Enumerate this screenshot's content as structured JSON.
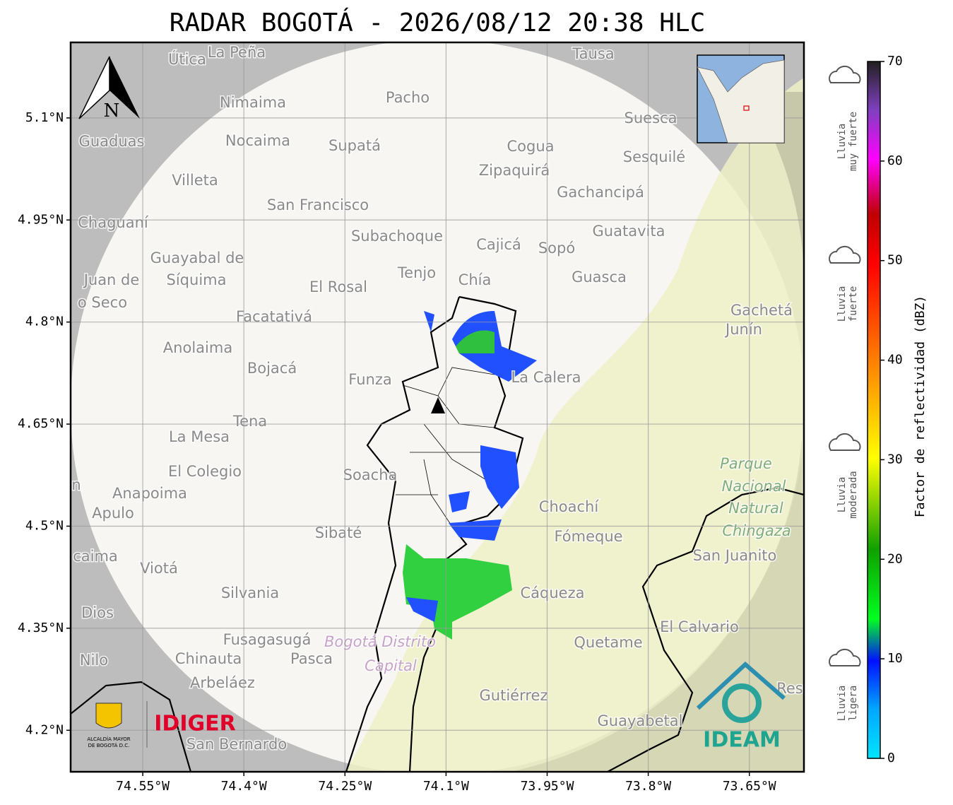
{
  "title": "RADAR BOGOTÁ - 2026/08/12 20:38 HLC",
  "north_label": "N",
  "map": {
    "xlim": [
      -74.657,
      -73.569
    ],
    "ylim": [
      4.139,
      5.211
    ],
    "xticks": [
      {
        "value": -74.55,
        "label": "74.55°W"
      },
      {
        "value": -74.4,
        "label": "74.4°W"
      },
      {
        "value": -74.25,
        "label": "74.25°W"
      },
      {
        "value": -74.1,
        "label": "74.1°W"
      },
      {
        "value": -73.95,
        "label": "73.95°W"
      },
      {
        "value": -73.8,
        "label": "73.8°W"
      },
      {
        "value": -73.65,
        "label": "73.65°W"
      }
    ],
    "yticks": [
      {
        "value": 5.1,
        "label": "5.1°N"
      },
      {
        "value": 4.95,
        "label": "4.95°N"
      },
      {
        "value": 4.8,
        "label": "4.8°N"
      },
      {
        "value": 4.65,
        "label": "4.65°N"
      },
      {
        "value": 4.5,
        "label": "4.5°N"
      },
      {
        "value": 4.35,
        "label": "4.35°N"
      },
      {
        "value": 4.2,
        "label": "4.2°N"
      }
    ],
    "grid": true
  },
  "places": [
    "Útica",
    "La Peña",
    "Tausa",
    "Pacho",
    "Nimaima",
    "Guaduas",
    "Nocaima",
    "Supatá",
    "Cogua",
    "Suesca",
    "Sesquilé",
    "Zipaquirá",
    "Villeta",
    "Gachancipá",
    "San Francisco",
    "Chaguaní",
    "Guatavita",
    "Subachoque",
    "Cajicá",
    "Sopó",
    "Guayabal de",
    "Síquima",
    "Tenjo",
    "Chía",
    "Guasca",
    "Juan de",
    "o Seco",
    "El Rosal",
    "Facatativá",
    "Gachetá",
    "Junín",
    "Anolaima",
    "Bojacá",
    "Funza",
    "La Calera",
    "Tena",
    "La Mesa",
    "El Colegio",
    "Soacha",
    "Anapoima",
    "n",
    "Apulo",
    "Choachí",
    "Sibaté",
    "Fómeque",
    "San Juanito",
    "caima",
    "Viotá",
    "Cáqueza",
    "Silvania",
    "Dios",
    "El Calvario",
    "Fusagasugá",
    "Quetame",
    "Nilo",
    "Chinauta",
    "Pasca",
    "Arbeláez",
    "Gutiérrez",
    "Res",
    "Guayabetal",
    "San Bernardo",
    "Parque",
    "Nacional",
    "Natural",
    "Chingaza",
    "Bogotá Distrito",
    "Capital"
  ],
  "colorbar": {
    "label": "Factor de reflectividad (dBZ)",
    "lim": [
      0,
      70
    ],
    "ticks": [
      0,
      10,
      20,
      30,
      40,
      50,
      60,
      70
    ]
  },
  "rain_categories": [
    [
      "Lluvia",
      "muy fuerte"
    ],
    [
      "Lluvia",
      "fuerte"
    ],
    [
      "Lluvia",
      "moderada"
    ],
    [
      "Lluvia",
      "ligera"
    ]
  ],
  "logos": {
    "idiger": "IDIGER",
    "ideam": "IDEAM",
    "alcaldia_1": "ALCALDÍA MAYOR",
    "alcaldia_2": "DE BOGOTÁ D.C."
  }
}
